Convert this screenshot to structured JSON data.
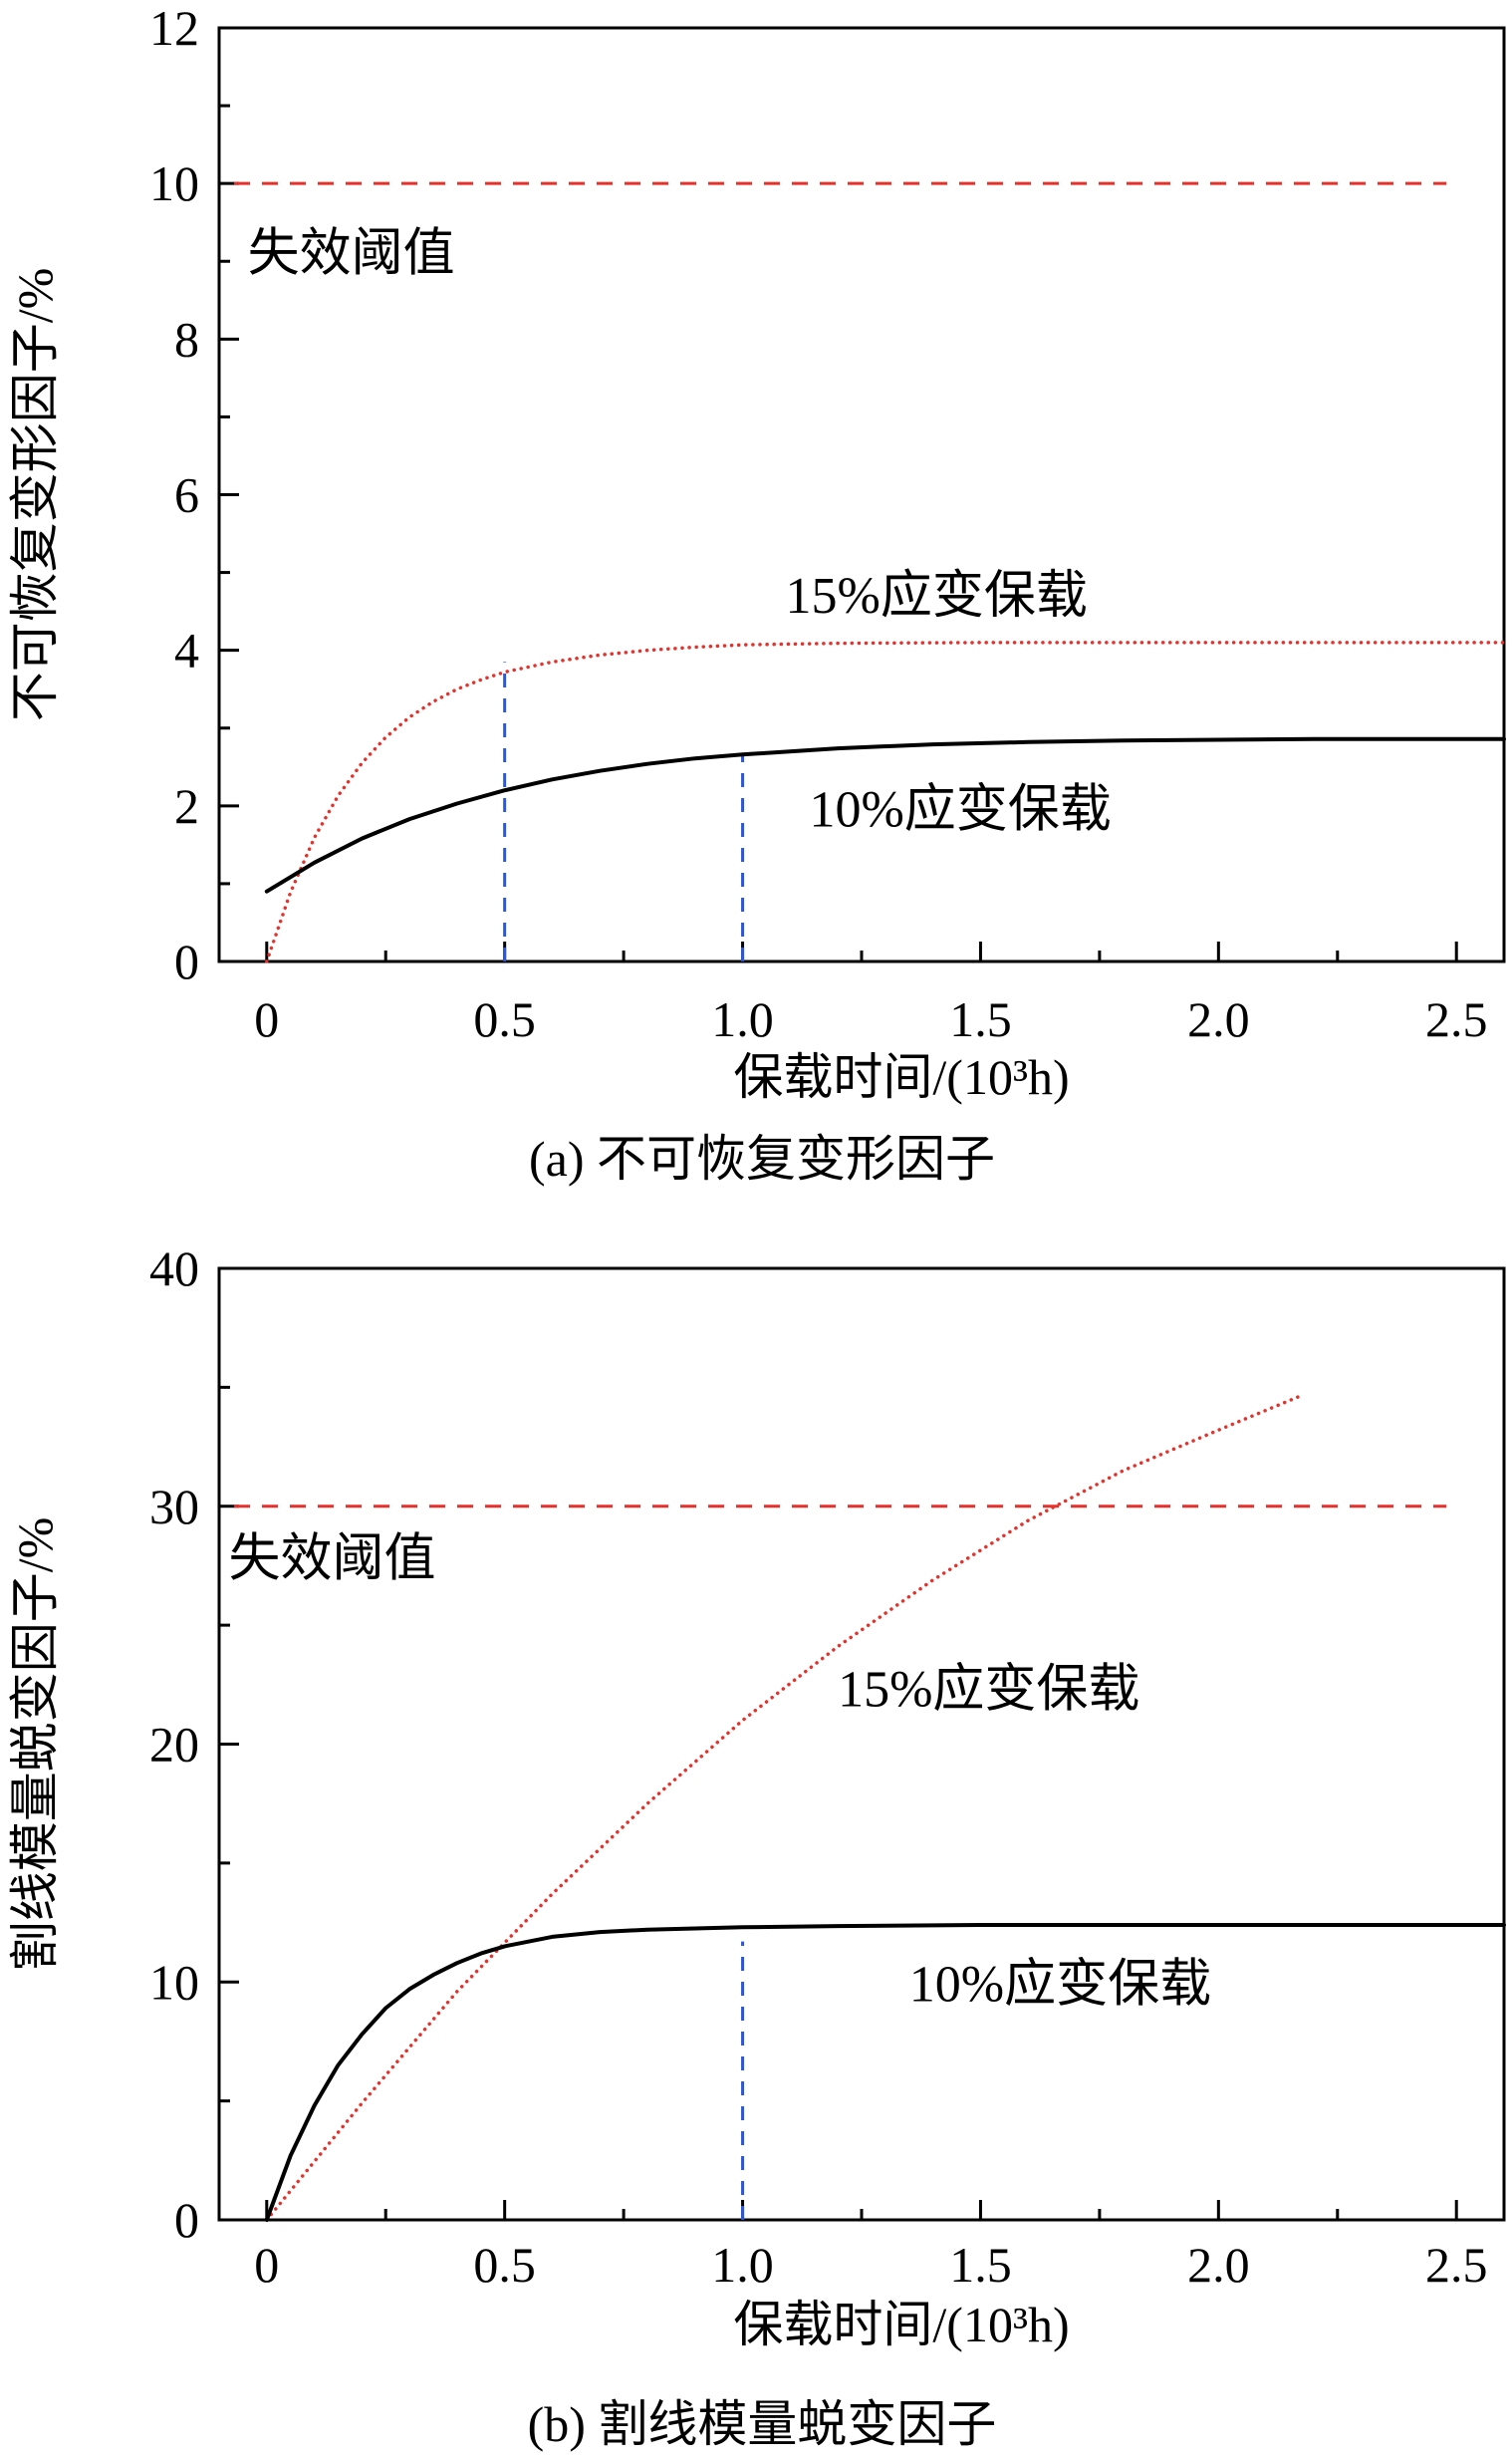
{
  "chart_data": [
    {
      "type": "line",
      "caption": "(a) 不可恢复变形因子",
      "xlabel": "保载时间/(10³h)",
      "ylabel": "不可恢复变形因子/%",
      "xlim": [
        -0.1,
        2.6
      ],
      "ylim": [
        0,
        12
      ],
      "xticks": [
        0,
        0.5,
        1.0,
        1.5,
        2.0,
        2.5
      ],
      "xtick_labels": [
        "0",
        "0.5",
        "1.0",
        "1.5",
        "2.0",
        "2.5"
      ],
      "yticks": [
        0,
        2,
        4,
        6,
        8,
        10,
        12
      ],
      "ytick_labels": [
        "0",
        "2",
        "4",
        "6",
        "8",
        "10",
        "12"
      ],
      "grid": false,
      "series": [
        {
          "name": "15%应变保载",
          "style": "dotted",
          "color": "#e8302a",
          "x": [
            0,
            0.05,
            0.1,
            0.15,
            0.2,
            0.25,
            0.3,
            0.35,
            0.4,
            0.45,
            0.5,
            0.6,
            0.7,
            0.8,
            0.9,
            1.0,
            1.2,
            1.5,
            2.0,
            2.5,
            2.6
          ],
          "y": [
            0,
            0.89,
            1.59,
            2.13,
            2.55,
            2.88,
            3.14,
            3.34,
            3.5,
            3.62,
            3.72,
            3.85,
            3.94,
            4.0,
            4.04,
            4.07,
            4.09,
            4.1,
            4.1,
            4.1,
            4.1
          ]
        },
        {
          "name": "10%应变保载",
          "style": "solid",
          "color": "#000000",
          "x": [
            0,
            0.1,
            0.2,
            0.3,
            0.4,
            0.5,
            0.6,
            0.7,
            0.8,
            0.9,
            1.0,
            1.2,
            1.4,
            1.6,
            1.8,
            2.0,
            2.2,
            2.4,
            2.6
          ],
          "y": [
            0.9,
            1.27,
            1.58,
            1.83,
            2.03,
            2.2,
            2.34,
            2.45,
            2.54,
            2.61,
            2.66,
            2.74,
            2.79,
            2.82,
            2.84,
            2.85,
            2.86,
            2.86,
            2.86
          ]
        }
      ],
      "annotations": [
        {
          "text": "失效阈值",
          "x": -0.04,
          "y": 9.1
        },
        {
          "text": "15%应变保载",
          "x": 1.09,
          "y": 4.7
        },
        {
          "text": "10%应变保载",
          "x": 1.14,
          "y": 1.95
        }
      ],
      "threshold": {
        "y": 10,
        "x_range": [
          -0.1,
          2.5
        ],
        "color": "#e8302a",
        "style": "dashed"
      },
      "markers": [
        {
          "x": 0.5,
          "y_to": 3.85,
          "color": "#2a57e0",
          "style": "dashed"
        },
        {
          "x": 1.0,
          "y_to": 2.68,
          "color": "#2a57e0",
          "style": "dashed"
        }
      ]
    },
    {
      "type": "line",
      "caption": "(b) 割线模量蜕变因子",
      "xlabel": "保载时间/(10³h)",
      "ylabel": "割线模量蜕变因子/%",
      "xlim": [
        -0.1,
        2.6
      ],
      "ylim": [
        0,
        40
      ],
      "xticks": [
        0,
        0.5,
        1.0,
        1.5,
        2.0,
        2.5
      ],
      "xtick_labels": [
        "0",
        "0.5",
        "1.0",
        "1.5",
        "2.0",
        "2.5"
      ],
      "yticks": [
        0,
        10,
        20,
        30,
        40
      ],
      "ytick_labels": [
        "0",
        "10",
        "20",
        "30",
        "40"
      ],
      "grid": false,
      "series": [
        {
          "name": "15%应变保载",
          "style": "dotted",
          "color": "#e8302a",
          "x": [
            0,
            0.2,
            0.4,
            0.6,
            0.8,
            1.0,
            1.2,
            1.4,
            1.6,
            1.8,
            2.0,
            2.18
          ],
          "y": [
            0,
            4.9,
            9.6,
            13.7,
            17.5,
            21.0,
            24.1,
            26.9,
            29.4,
            31.5,
            33.2,
            34.7
          ]
        },
        {
          "name": "10%应变保载",
          "style": "solid",
          "color": "#000000",
          "x": [
            0,
            0.05,
            0.1,
            0.15,
            0.2,
            0.25,
            0.3,
            0.35,
            0.4,
            0.45,
            0.5,
            0.6,
            0.7,
            0.8,
            1.0,
            1.2,
            1.5,
            2.0,
            2.6
          ],
          "y": [
            0,
            2.7,
            4.8,
            6.5,
            7.8,
            8.9,
            9.7,
            10.3,
            10.8,
            11.2,
            11.5,
            11.9,
            12.1,
            12.2,
            12.3,
            12.35,
            12.4,
            12.4,
            12.4
          ]
        }
      ],
      "annotations": [
        {
          "text": "失效阈值",
          "x": -0.08,
          "y": 27.8
        },
        {
          "text": "15%应变保载",
          "x": 1.2,
          "y": 22.3
        },
        {
          "text": "10%应变保载",
          "x": 1.35,
          "y": 9.9
        }
      ],
      "threshold": {
        "y": 30,
        "x_range": [
          -0.1,
          2.5
        ],
        "color": "#e8302a",
        "style": "dashed"
      },
      "markers": [
        {
          "x": 1.0,
          "y_to": 11.7,
          "color": "#2a57e0",
          "style": "dashed"
        }
      ]
    }
  ]
}
